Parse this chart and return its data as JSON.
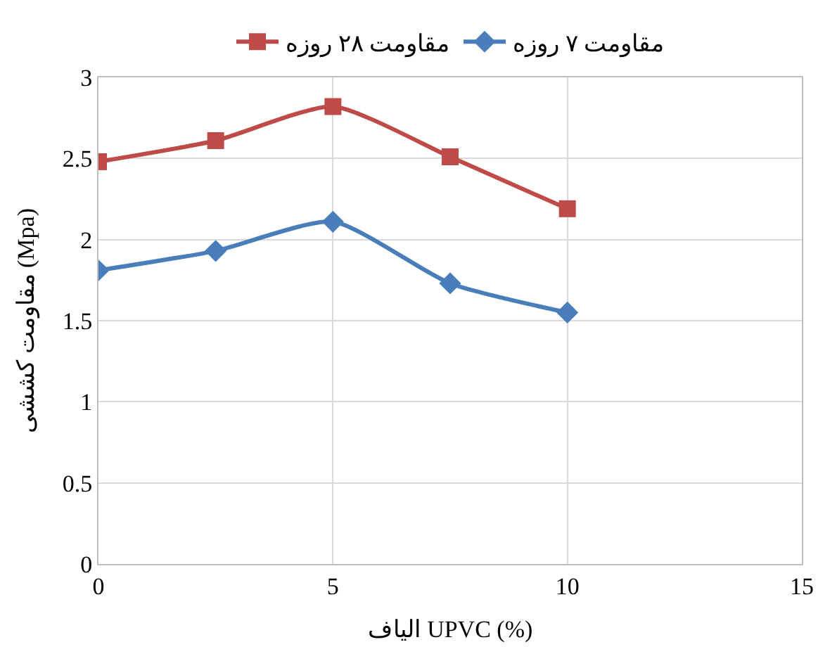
{
  "chart_data": {
    "type": "line",
    "xlabel": "الیاف UPVC (%)",
    "ylabel": "مقاومت کششی (Mpa)",
    "x": [
      0,
      2.5,
      5,
      7.5,
      10
    ],
    "series": [
      {
        "name": "مقاومت ۷ روزه",
        "color": "#4a7ebb",
        "marker": "diamond",
        "values": [
          1.81,
          1.93,
          2.11,
          1.73,
          1.55
        ]
      },
      {
        "name": "مقاومت ۲۸ روزه",
        "color": "#be4b48",
        "marker": "square",
        "values": [
          2.48,
          2.61,
          2.82,
          2.51,
          2.19
        ]
      }
    ],
    "xlim": [
      0,
      15
    ],
    "xticks": [
      0,
      5,
      10,
      15
    ],
    "ylim": [
      0,
      3
    ],
    "yticks": [
      0,
      0.5,
      1,
      1.5,
      2,
      2.5,
      3
    ],
    "grid": true,
    "legend": "top",
    "line_style": "solid"
  }
}
